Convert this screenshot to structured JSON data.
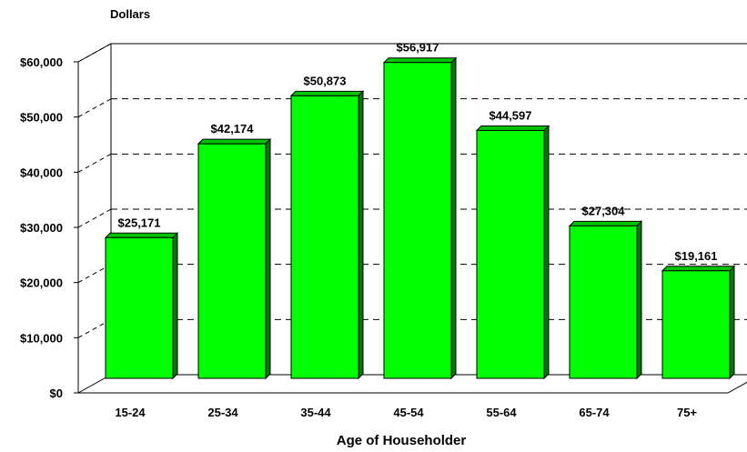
{
  "chart_data": {
    "type": "bar",
    "title": "",
    "ylabel": "Dollars",
    "xlabel": "Age of Householder",
    "categories": [
      "15-24",
      "25-34",
      "35-44",
      "45-54",
      "55-64",
      "65-74",
      "75+"
    ],
    "values": [
      25171,
      42174,
      50873,
      56917,
      44597,
      27304,
      19161
    ],
    "value_labels": [
      "$25,171",
      "$42,174",
      "$50,873",
      "$56,917",
      "$44,597",
      "$27,304",
      "$19,161"
    ],
    "y_ticks": [
      0,
      10000,
      20000,
      30000,
      40000,
      50000,
      60000
    ],
    "y_tick_labels": [
      "$0",
      "$10,000",
      "$20,000",
      "$30,000",
      "$40,000",
      "$50,000",
      "$60,000"
    ],
    "ylim": [
      0,
      60000
    ],
    "grid": "dashed horizontal",
    "legend": "none",
    "colors": {
      "bar_front": "#00ff00",
      "bar_top": "#00c400",
      "bar_side": "#007a00",
      "outline": "#000000"
    }
  }
}
